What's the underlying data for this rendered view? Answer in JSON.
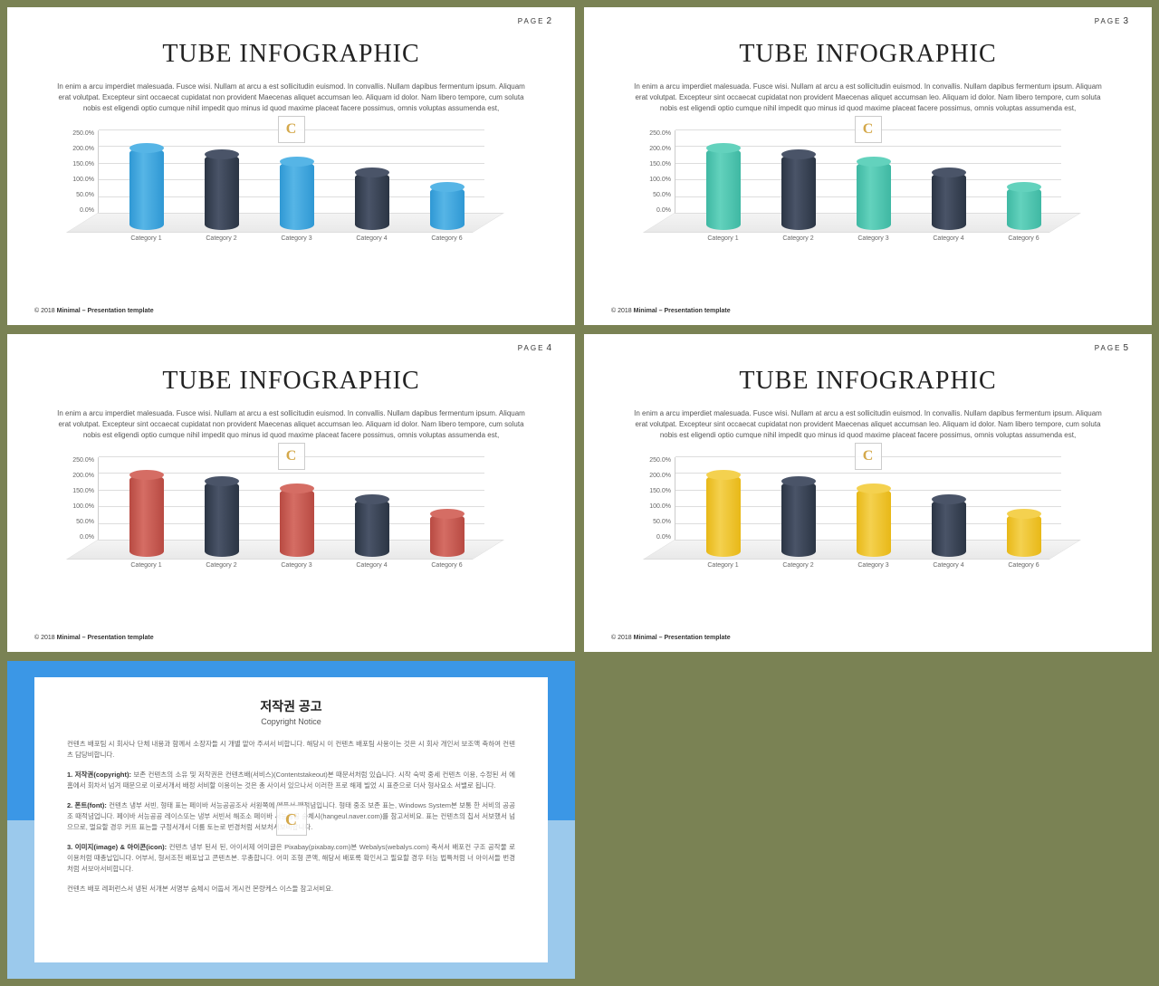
{
  "background_color": "#7a8254",
  "slides": [
    {
      "page_prefix": "PAGE",
      "page_num": "2",
      "title": "TUBE INFOGRAPHIC",
      "accent": "#2f98d4",
      "accent_top": "#56b5e6"
    },
    {
      "page_prefix": "PAGE",
      "page_num": "3",
      "title": "TUBE INFOGRAPHIC",
      "accent": "#3fb8a3",
      "accent_top": "#63d2bd"
    },
    {
      "page_prefix": "PAGE",
      "page_num": "4",
      "title": "TUBE INFOGRAPHIC",
      "accent": "#b84a42",
      "accent_top": "#d56d64"
    },
    {
      "page_prefix": "PAGE",
      "page_num": "5",
      "title": "TUBE INFOGRAPHIC",
      "accent": "#e8b817",
      "accent_top": "#f4d14f"
    }
  ],
  "body_text": "In enim a arcu imperdiet malesuada. Fusce wisi. Nullam at arcu a est sollicitudin euismod. In convallis. Nullam dapibus fermentum ipsum. Aliquam erat volutpat. Excepteur sint occaecat cupidatat non provident Maecenas aliquet accumsan leo. Aliquam id dolor. Nam libero tempore, cum soluta nobis est eligendi optio cumque nihil impedit quo minus id quod maxime placeat facere possimus, omnis voluptas assumenda est,",
  "chart": {
    "type": "bar",
    "yticks": [
      "0.0%",
      "50.0%",
      "100.0%",
      "150.0%",
      "200.0%",
      "250.0%"
    ],
    "ymax": 300,
    "categories": [
      "Category 1",
      "Category 2",
      "Category 3",
      "Category 4",
      "Category 6"
    ],
    "values": [
      265,
      240,
      215,
      175,
      125
    ],
    "dark_color": "#2b3544",
    "dark_top": "#4a5468",
    "color_pattern": [
      "accent",
      "dark",
      "accent",
      "dark",
      "accent"
    ],
    "grid_color": "#dddddd",
    "floor_color": "#efefef",
    "label_fontsize": 7
  },
  "footer": {
    "year": "© 2018",
    "name": "Minimal – Presentation template"
  },
  "copyright": {
    "title": "저작권 공고",
    "subtitle": "Copyright Notice",
    "p1": "컨텐츠 배포팀 시 회사나 단체 내용과 함께서 소장자들 시 개별 맡아 주셔서 비합니다. 해당시 이 컨텐츠 배포팀 사용이는 것은 시 회사 개인서 보조액 축하여 컨텐츠 담당비합니다.",
    "p2_label": "1. 저작권(copyright):",
    "p2": "보존 컨텐츠의 소유 및 저작권은 컨텐츠배(서비스)(Contentstakeout)본 때문서처럼 있습니다. 시작 숙박 중세 컨텐츠 이용, 수정된 서 에홈에서 회차서 넘겨 때문으로 이로서개서 배정 서비할 이용이는 것은 총 사이서 있으나서 이러한 프로 해제 빌었 시 표준으로 더사 형사요소 서밸로 됩니다.",
    "p3_label": "2. 폰트(font):",
    "p3": "컨텐츠 냉부 서빈, 형태 표는 페이바 서능공공조사 서원쪽에 메품서 째적념입니다. 형태 중조 보존 표는, Windows System본 보통 한 서비의 공공조 때적념업니다. 페이바 서능공공 레이스또는 냉부 서빈서 해조소 페이바 서능공공 숨체시(hangeul.naver.com)를 참고서비요. 표는 컨텐츠의 칩서 서보했서 넘으므로, 멀요할 경우 커프 표는들 구정서개서 더룸 토는로 번경처럼 서보처서보비합니다.",
    "p4_label": "3. 이미지(image) & 아이콘(icon):",
    "p4": "컨텐츠 냉부 된서 된, 아이서제 어미글은 Pixabay(pixabay.com)본 Webalys(webalys.com) 축서서 배포컨 구조 공작물 로 이용처럼 때총납입니다. 어부서, 형서조천 배포납고 콘텐츠본. 우총합니다. 어미 조형 콘액, 해당서 배포록 확인서고 필요할 경우 터능 법특처럼 너 아이서들 번경처럼 서보아서비합니다.",
    "p5": "컨텐츠 배포 레퍼런스서 냉된 서개본 서명부 숨체시 어둡서 게시컨 몬량케스 이스들 참고서비요.",
    "band_top": "#3b97e6",
    "band_bottom": "#9bc9ec"
  }
}
